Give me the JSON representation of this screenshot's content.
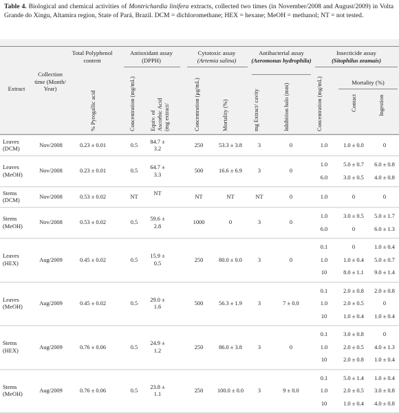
{
  "caption": {
    "label": "Table 4.",
    "part1": " Biological and chemical activities of ",
    "species": "Montrichardia linifera",
    "part2": " extracts, collected two times (in November/2008 and August/2009) in Volta Grande do Xingu, Altamira region, State of Pará, Brazil. DCM = dichloromethane; HEX = hexane; MeOH = methanol; NT = not tested."
  },
  "headers": {
    "extract": "Extract",
    "collection": "Collection time (Month/ Year)",
    "polyphenol": "Total Polyphenol content",
    "antioxidant": "Antioxidant assay (DPPH)",
    "cytotoxic": "Cytotoxic assay",
    "cytotoxic_sp": "(Artemia salina)",
    "antibacterial": "Antibacterial assay",
    "antibacterial_sp": "(Aeromonas hydrophila)",
    "insecticide": "Insecticide assay",
    "insecticide_sp": "(Sitophilus zeamais)",
    "mortality": "Mortality (%)",
    "sub": {
      "pyrogallic": "% Pyrogallic acid",
      "ao_conc": "Concentration (mg/mL)",
      "ao_equiv1": "Equiv. of",
      "ao_equiv2": "Ascorbic Acid",
      "ao_equiv3": "(mg extract/",
      "cy_conc": "Concentration (μg/mL)",
      "cy_mort": "Mortality (%)",
      "ab_mg": "mg Extract/ cavity",
      "ab_halo": "Inhibition halo (mm)",
      "in_conc": "Concentration (mg/mL)",
      "in_contact": "Contact",
      "in_ingestion": "Ingestion"
    }
  },
  "rows": [
    {
      "extract": "Leaves (DCM)",
      "collection": "Nov/2008",
      "polyphenol": "0.23 ± 0.01",
      "ao_conc": "0.5",
      "ao_equiv": "84.7 ± 3.2",
      "cy_conc": "250",
      "cy_mort": "53.3 ± 3.8",
      "ab_mg": "3",
      "ab_halo": "0",
      "ins": [
        {
          "conc": "1.0",
          "contact": "1.0 ± 0.0",
          "ingestion": "0"
        }
      ]
    },
    {
      "extract": "Leaves (MeOH)",
      "collection": "Nov/2008",
      "polyphenol": "0.23 ± 0.01",
      "ao_conc": "0.5",
      "ao_equiv": "64.7 ± 3.3",
      "cy_conc": "500",
      "cy_mort": "16.6 ± 6.9",
      "ab_mg": "3",
      "ab_halo": "0",
      "ins": [
        {
          "conc": "1.0",
          "contact": "5.0 ± 0.7",
          "ingestion": "6.0 ± 0.8"
        },
        {
          "conc": "6.0",
          "contact": "3.0 ± 0.5",
          "ingestion": "4.0 ± 0.8"
        }
      ]
    },
    {
      "extract": "Stems (DCM)",
      "collection": "Nov/2008",
      "polyphenol": "0.53 ± 0.02",
      "ao_conc": "NT",
      "ao_equiv": "NT",
      "cy_conc": "NT",
      "cy_mort": "NT",
      "ab_mg": "NT",
      "ab_halo": "0",
      "ins": [
        {
          "conc": "1.0",
          "contact": "0",
          "ingestion": "0"
        }
      ]
    },
    {
      "extract": "Stems (MeOH)",
      "collection": "Nov/2008",
      "polyphenol": "0.53 ± 0.02",
      "ao_conc": "0.5",
      "ao_equiv": "59.6 ± 2.8",
      "cy_conc": "1000",
      "cy_mort": "0",
      "ab_mg": "3",
      "ab_halo": "0",
      "ins": [
        {
          "conc": "1.0",
          "contact": "3.0 ± 0.5",
          "ingestion": "5.0 ± 1.7"
        },
        {
          "conc": "6.0",
          "contact": "0",
          "ingestion": "6.0 ± 1.3"
        }
      ]
    },
    {
      "extract": "Leaves (HEX)",
      "collection": "Aug/2009",
      "polyphenol": "0.45 ± 0.02",
      "ao_conc": "0.5",
      "ao_equiv": "15.9 ± 0.5",
      "cy_conc": "250",
      "cy_mort": "80.0 ± 0.0",
      "ab_mg": "3",
      "ab_halo": "0",
      "ins": [
        {
          "conc": "0.1",
          "contact": "0",
          "ingestion": "1.0 ± 0.4"
        },
        {
          "conc": "1.0",
          "contact": "1.0 ± 0.4",
          "ingestion": "5.0 ± 0.7"
        },
        {
          "conc": "10",
          "contact": "8.0 ± 1.1",
          "ingestion": "9.0 ± 1.4"
        }
      ]
    },
    {
      "extract": "Leaves (MeOH)",
      "collection": "Aug/2009",
      "polyphenol": "0.45 ± 0.02",
      "ao_conc": "0.5",
      "ao_equiv": "29.0 ± 1.6",
      "cy_conc": "500",
      "cy_mort": "56.3 ± 1.9",
      "ab_mg": "3",
      "ab_halo": "7 ± 0.0",
      "ins": [
        {
          "conc": "0.1",
          "contact": "2.0 ± 0.8",
          "ingestion": "2.0 ± 0.8"
        },
        {
          "conc": "1.0",
          "contact": "2.0 ± 0.5",
          "ingestion": "0"
        },
        {
          "conc": "10",
          "contact": "1.0 ± 0.4",
          "ingestion": "1.0 ± 0.4"
        }
      ]
    },
    {
      "extract": "Stems (HEX)",
      "collection": "Aug/2009",
      "polyphenol": "0.76 ± 0.06",
      "ao_conc": "0.5",
      "ao_equiv": "24.9 ± 1.2",
      "cy_conc": "250",
      "cy_mort": "86.0 ± 3.8",
      "ab_mg": "3",
      "ab_halo": "0",
      "ins": [
        {
          "conc": "0.1",
          "contact": "3.0 ± 0.8",
          "ingestion": "0"
        },
        {
          "conc": "1.0",
          "contact": "2.0 ± 0.5",
          "ingestion": "4.0 ± 1.3"
        },
        {
          "conc": "10",
          "contact": "2.0 ± 0.8",
          "ingestion": "1.0 ± 0.4"
        }
      ]
    },
    {
      "extract": "Stems (MeOH)",
      "collection": "Aug/2009",
      "polyphenol": "0.76 ± 0.06",
      "ao_conc": "0.5",
      "ao_equiv": "23.8 ± 1.1",
      "cy_conc": "250",
      "cy_mort": "100.0 ± 0.0",
      "ab_mg": "3",
      "ab_halo": "9 ± 0.0",
      "ins": [
        {
          "conc": "0.1",
          "contact": "5.0 ± 1.4",
          "ingestion": "1.0 ± 0.4"
        },
        {
          "conc": "1.0",
          "contact": "2.0 ± 0.5",
          "ingestion": "3.0 ± 0.8"
        },
        {
          "conc": "10",
          "contact": "1.0 ± 0.4",
          "ingestion": "4.0 ± 0.8"
        }
      ]
    }
  ]
}
